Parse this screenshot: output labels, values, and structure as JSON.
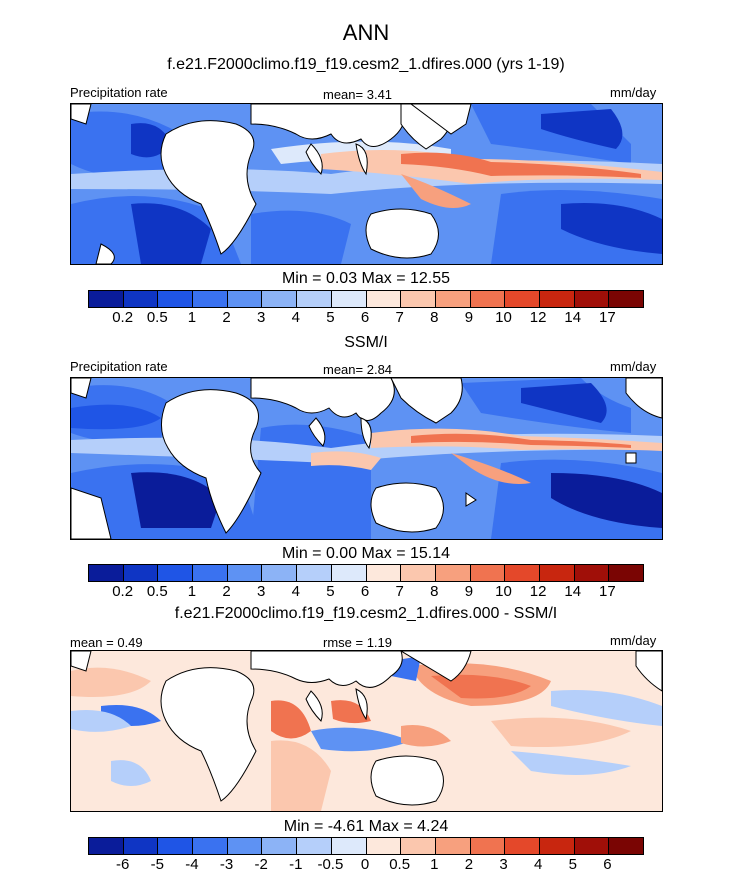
{
  "figure": {
    "title": "ANN"
  },
  "panels": [
    {
      "subtitle": "f.e21.F2000climo.f19_f19.cesm2_1.dfires.000 (yrs 1-19)",
      "left_label": "Precipitation rate",
      "center_label": "mean=   3.41",
      "right_label": "mm/day",
      "minmax": "Min =   0.03 Max =  12.55"
    },
    {
      "subtitle": "SSM/I",
      "left_label": "Precipitation rate",
      "center_label": "mean=   2.84",
      "right_label": "mm/day",
      "minmax": "Min =   0.00 Max =  15.14"
    },
    {
      "subtitle": "f.e21.F2000climo.f19_f19.cesm2_1.dfires.000 - SSM/I",
      "left_label": "mean =   0.49",
      "center_label": "rmse =   1.19",
      "right_label": "mm/day",
      "minmax": "Min =  -4.61 Max =   4.24"
    }
  ],
  "colorbars": {
    "precip": {
      "ticks": [
        "0.2",
        "0.5",
        "1",
        "2",
        "3",
        "4",
        "5",
        "6",
        "7",
        "8",
        "9",
        "10",
        "12",
        "14",
        "17"
      ],
      "colors": [
        "#0a1c9a",
        "#0f35c4",
        "#1f55e6",
        "#3a72f0",
        "#5e92f3",
        "#8cb3f6",
        "#b5cffa",
        "#dde9fb",
        "#fde8dc",
        "#fbc7ae",
        "#f7a07e",
        "#f07350",
        "#e4482a",
        "#c8260f",
        "#a00f08",
        "#7a0503"
      ]
    },
    "diff": {
      "ticks": [
        "-6",
        "-5",
        "-4",
        "-3",
        "-2",
        "-1",
        "-0.5",
        "0",
        "0.5",
        "1",
        "2",
        "3",
        "4",
        "5",
        "6"
      ],
      "colors": [
        "#0a1c9a",
        "#0f35c4",
        "#1f55e6",
        "#3a72f0",
        "#5e92f3",
        "#8cb3f6",
        "#b5cffa",
        "#dde9fb",
        "#fde8dc",
        "#fbc7ae",
        "#f7a07e",
        "#f07350",
        "#e4482a",
        "#c8260f",
        "#a00f08",
        "#7a0503"
      ]
    }
  }
}
